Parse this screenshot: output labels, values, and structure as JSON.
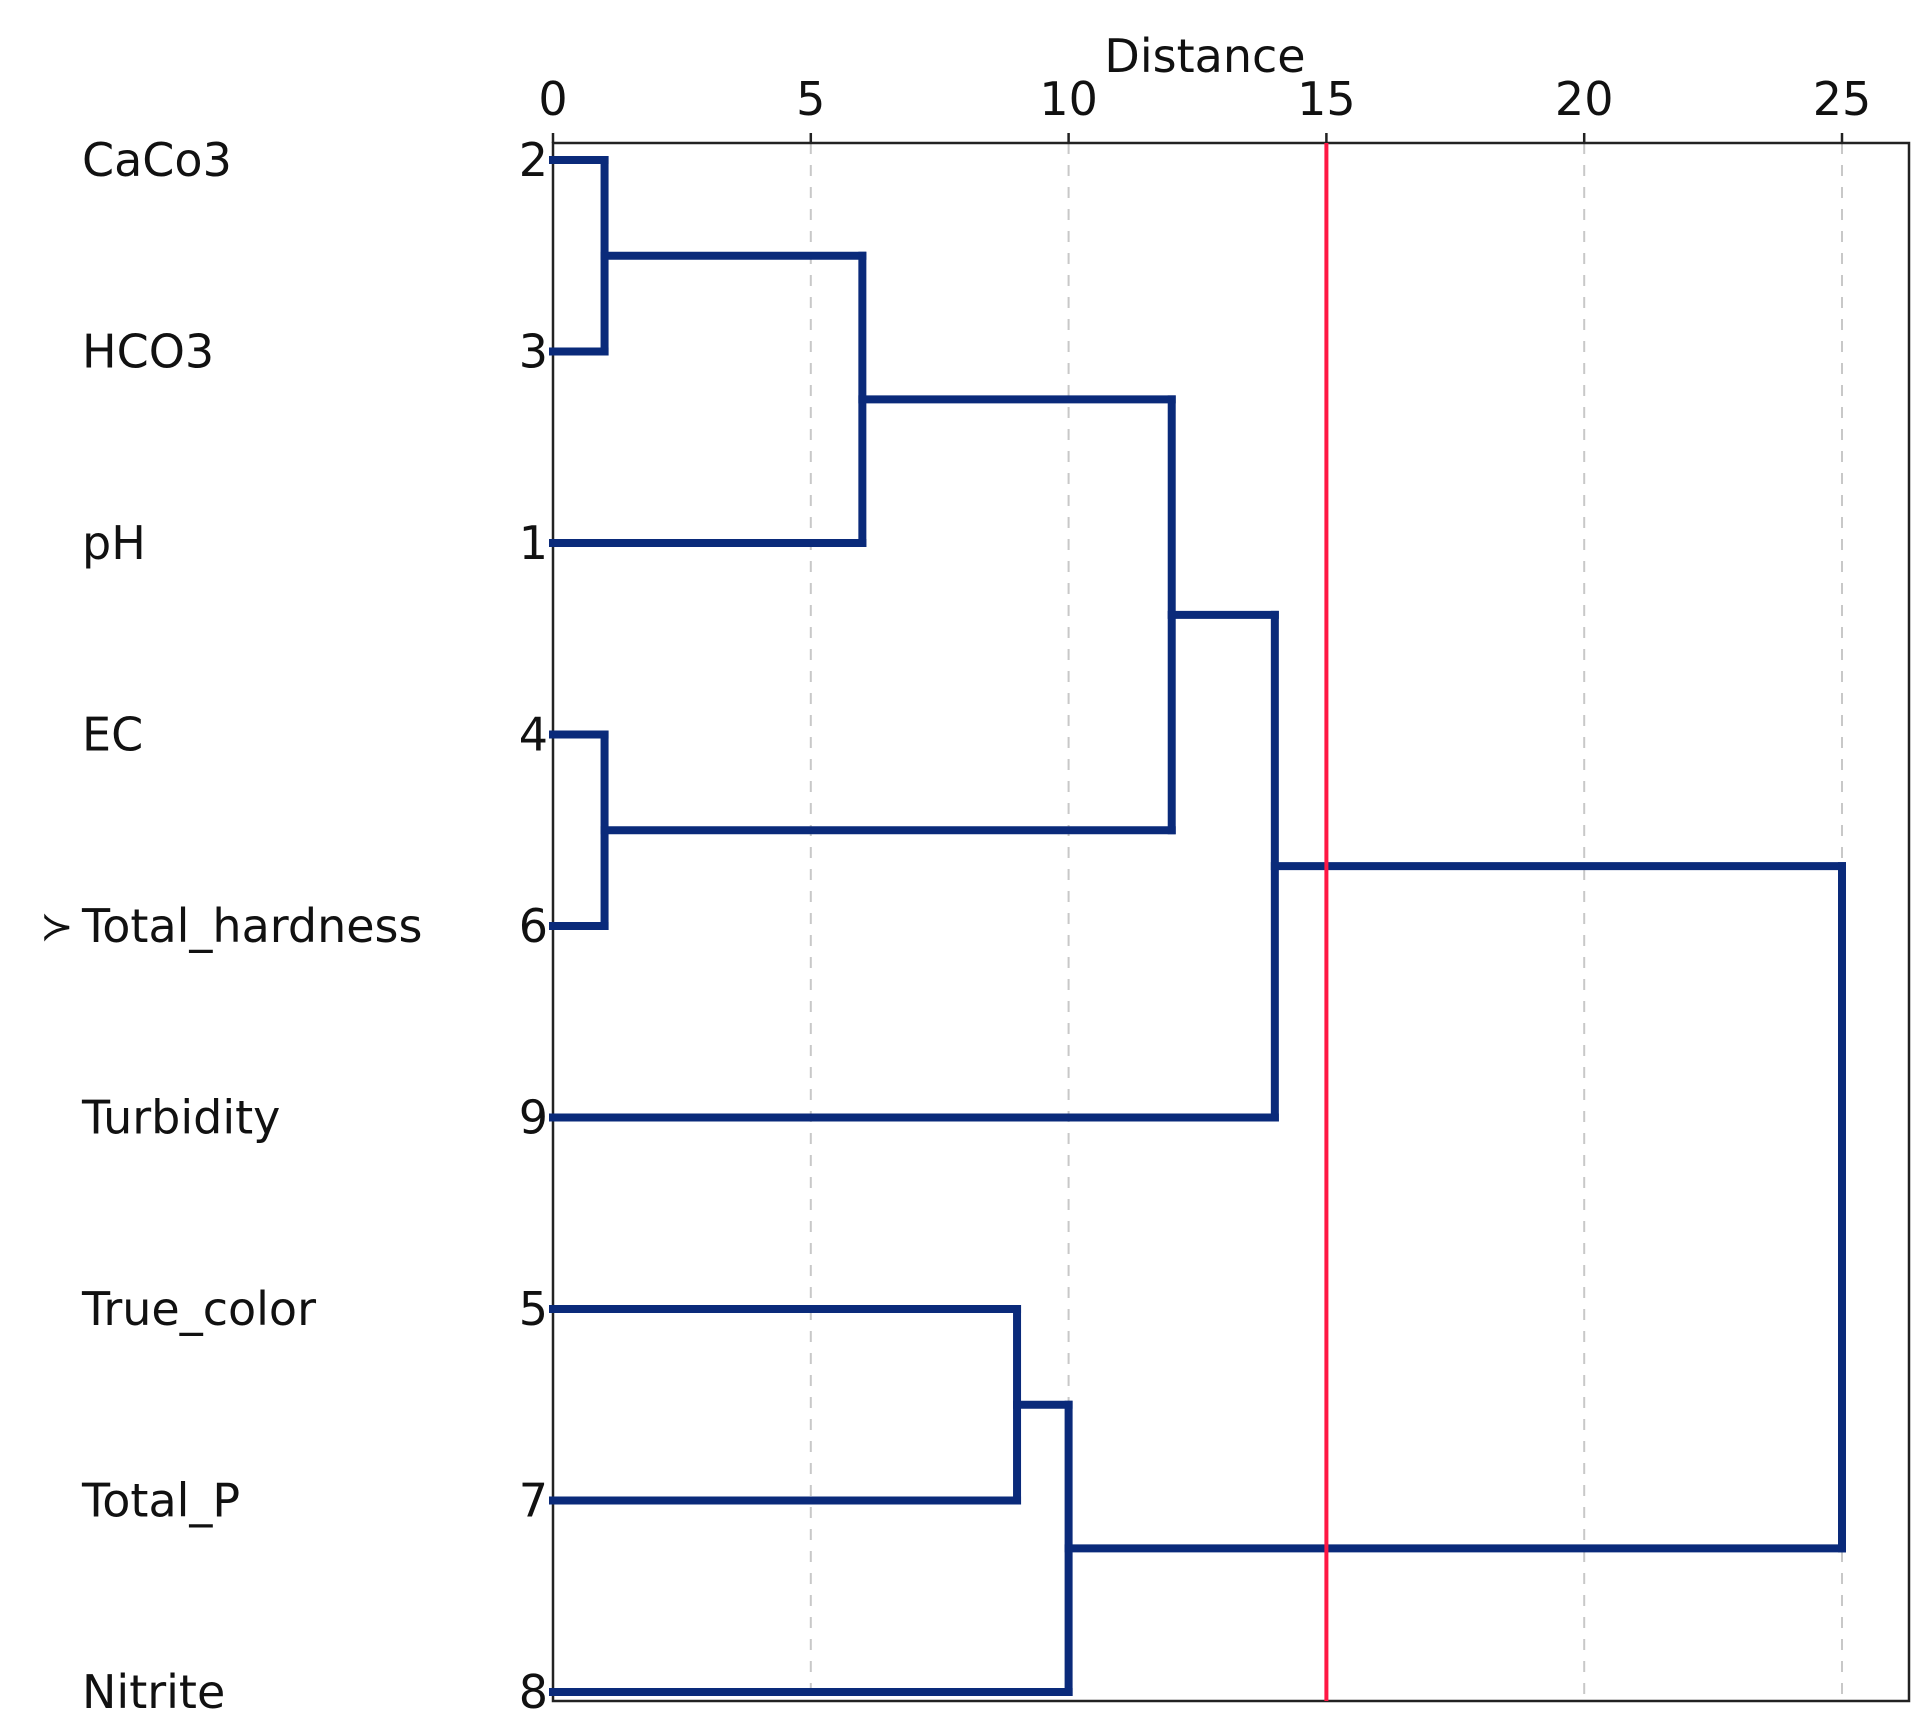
{
  "chart_data": {
    "type": "dendrogram",
    "xlabel": "Distance",
    "title": "",
    "xlim": [
      0,
      25
    ],
    "x_ticks": [
      0,
      5,
      10,
      15,
      20,
      25
    ],
    "x_tick_labels": [
      "0",
      "5",
      "10",
      "15",
      "20",
      "25"
    ],
    "grid": "dashed vertical gridlines at 5, 10, 20, 25",
    "leaves": [
      {
        "name": "CaCo3",
        "id": "2"
      },
      {
        "name": "HCO3",
        "id": "3"
      },
      {
        "name": "pH",
        "id": "1"
      },
      {
        "name": "EC",
        "id": "4"
      },
      {
        "name": "Total_hardness",
        "id": "6"
      },
      {
        "name": "Turbidity",
        "id": "9"
      },
      {
        "name": "True_color",
        "id": "5"
      },
      {
        "name": "Total_P",
        "id": "7"
      },
      {
        "name": "Nitrite",
        "id": "8"
      }
    ],
    "merges": [
      {
        "members": [
          "CaCo3",
          "HCO3"
        ],
        "distance": 1
      },
      {
        "members": [
          "EC",
          "Total_hardness"
        ],
        "distance": 1
      },
      {
        "members": [
          "CaCo3+HCO3",
          "pH"
        ],
        "distance": 6
      },
      {
        "members": [
          "True_color",
          "Total_P"
        ],
        "distance": 9
      },
      {
        "members": [
          "True_color+Total_P",
          "Nitrite"
        ],
        "distance": 10
      },
      {
        "members": [
          "CaCo3+HCO3+pH",
          "EC+Total_hardness"
        ],
        "distance": 12
      },
      {
        "members": [
          "CaCo3+HCO3+pH+EC+Total_hardness",
          "Turbidity"
        ],
        "distance": 14
      },
      {
        "members": [
          "cluster_A",
          "cluster_B"
        ],
        "distance": 25
      }
    ],
    "cut_line": {
      "distance": 15,
      "color": "#ff1744"
    },
    "highlighted_leaf_marker": {
      "leaf": "Total_hardness",
      "symbol": "≻"
    },
    "colors": {
      "branch": "#0a2a7a",
      "frame": "#222222",
      "grid": "#c8c8c8"
    }
  }
}
